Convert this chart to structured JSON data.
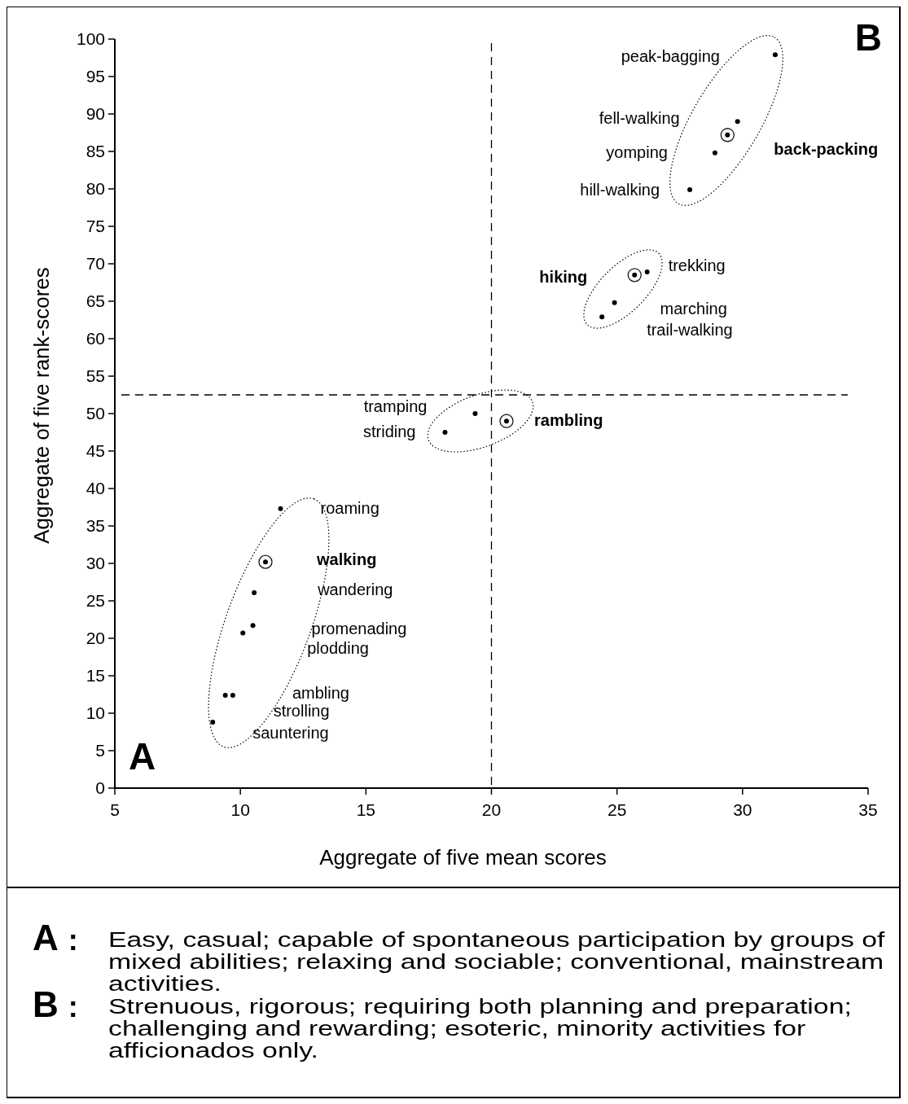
{
  "chart_data": {
    "type": "scatter",
    "xlabel": "Aggregate of five mean scores",
    "ylabel": "Aggregate of five rank-scores",
    "xlim": [
      5,
      35
    ],
    "xticks": [
      5,
      10,
      15,
      20,
      25,
      30,
      35
    ],
    "ylim": [
      0,
      100
    ],
    "yticks": [
      0,
      5,
      10,
      15,
      20,
      25,
      30,
      35,
      40,
      45,
      50,
      55,
      60,
      65,
      70,
      75,
      80,
      85,
      90,
      95,
      100
    ],
    "grid": false,
    "marker": "circle",
    "series": [
      {
        "color": "#000000",
        "x": [
          31.3,
          29.8,
          28.9,
          27.9,
          26.2,
          24.9,
          24.4,
          19.35,
          18.15,
          11.6,
          10.55,
          10.5,
          10.1,
          9.7,
          9.4,
          8.9
        ],
        "values": [
          97.9,
          89.0,
          84.8,
          79.9,
          68.9,
          64.8,
          62.9,
          50.0,
          47.5,
          37.3,
          26.1,
          21.7,
          20.7,
          12.4,
          12.4,
          8.8
        ]
      },
      {
        "color": "#000000",
        "x": [
          29.4,
          25.7,
          20.6,
          11.0
        ],
        "values": [
          87.2,
          68.5,
          49.0,
          30.2
        ]
      }
    ],
    "ref_lines": [
      {
        "axis": "x",
        "value": 20,
        "line_style": "dashed"
      },
      {
        "axis": "y",
        "value": 52.5,
        "line_style": "dashed"
      }
    ],
    "annotations": [
      "peak-bagging",
      "fell-walking",
      "back-packing",
      "yomping",
      "hill-walking",
      "trekking",
      "hiking",
      "marching",
      "trail-walking",
      "tramping",
      "striding",
      "rambling",
      "roaming",
      "walking",
      "wandering",
      "promenading",
      "plodding",
      "ambling",
      "strolling",
      "sauntering",
      "A",
      "B",
      "A : Easy, casual; capable of spontaneous participation by groups of mixed abilities; relaxing and sociable; conventional, mainstream activities.",
      "B : Strenuous, rigorous; requiring both planning and preparation; challenging and rewarding; esoteric, minority activities for afficionados only."
    ]
  }
}
